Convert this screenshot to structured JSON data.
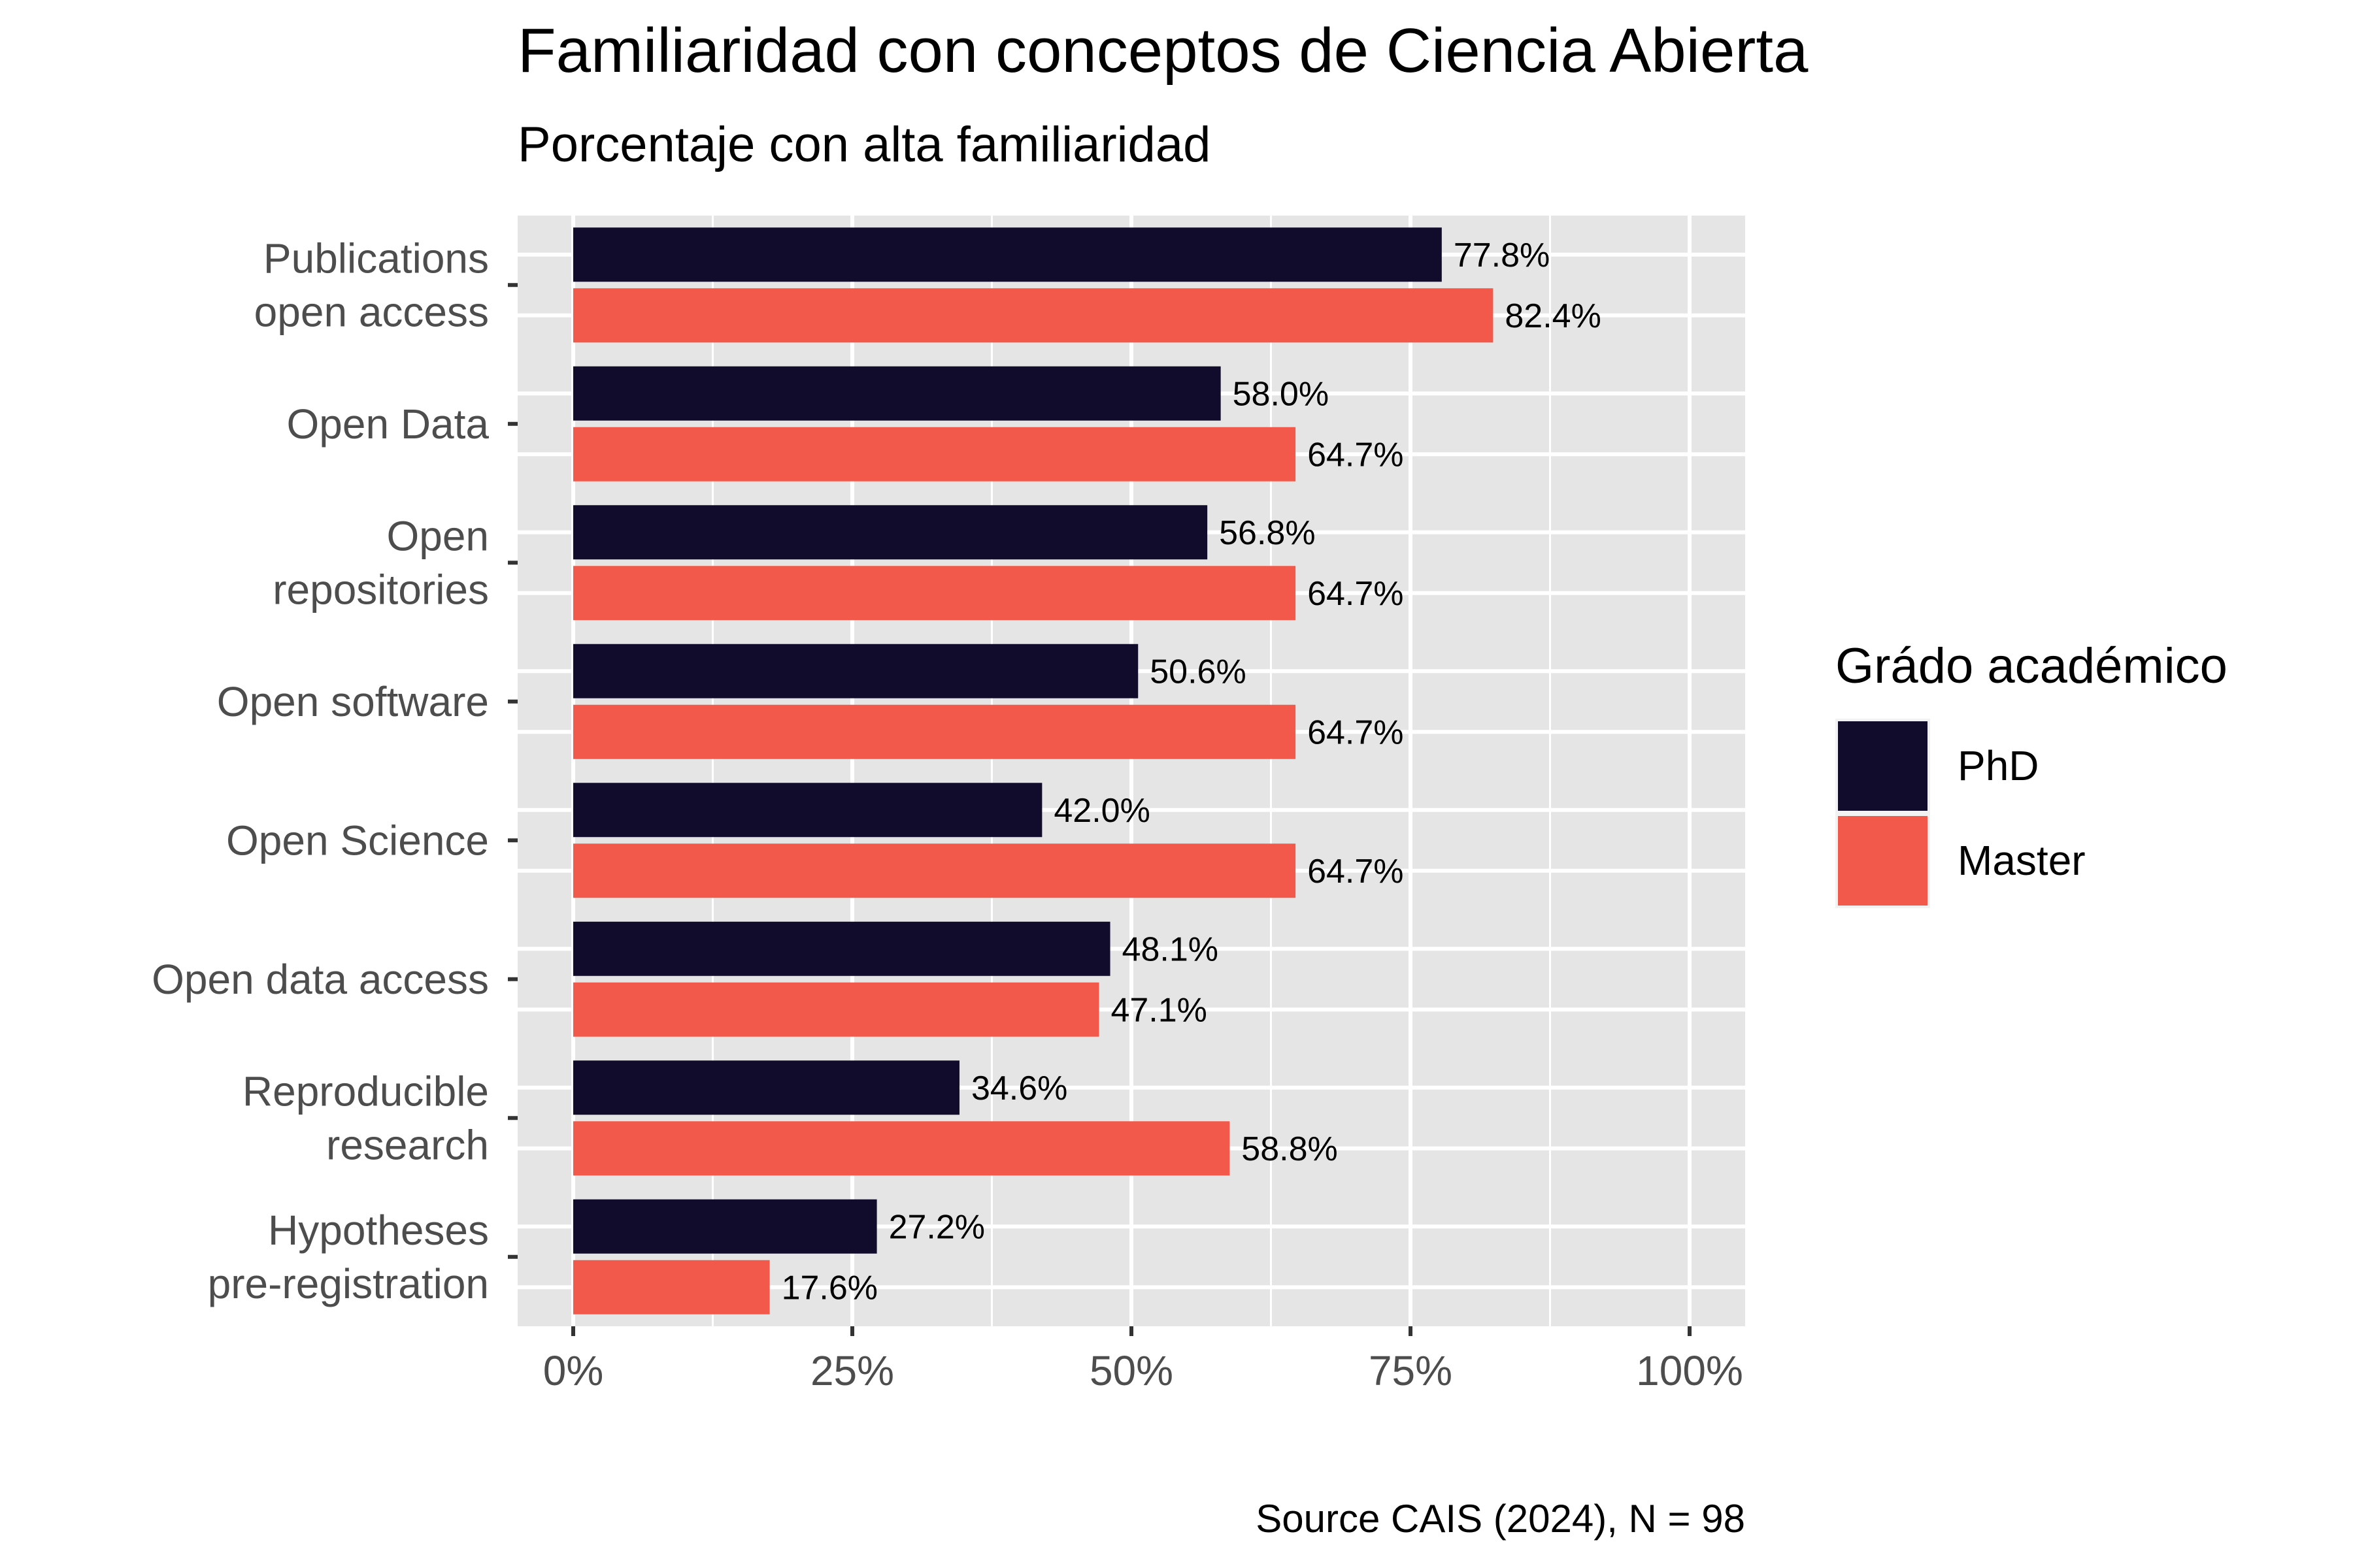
{
  "chart_data": {
    "type": "bar",
    "orientation": "horizontal",
    "title": "Familiaridad con conceptos de Ciencia Abierta",
    "subtitle": "Porcentaje con alta familiaridad",
    "caption": "Source CAIS (2024), N = 98",
    "categories": [
      [
        "Publications",
        "open access"
      ],
      [
        "Open Data"
      ],
      [
        "Open",
        "repositories"
      ],
      [
        "Open software"
      ],
      [
        "Open Science"
      ],
      [
        "Open data access"
      ],
      [
        "Reproducible",
        "research"
      ],
      [
        "Hypotheses",
        "pre-registration"
      ]
    ],
    "series": [
      {
        "name": "PhD",
        "color": "#120c2c",
        "values": [
          77.8,
          58.0,
          56.8,
          50.6,
          42.0,
          48.1,
          34.6,
          27.2
        ],
        "labels": [
          "77.8%",
          "58.0%",
          "56.8%",
          "50.6%",
          "42.0%",
          "48.1%",
          "34.6%",
          "27.2%"
        ]
      },
      {
        "name": "Master",
        "color": "#f2594b",
        "values": [
          82.4,
          64.7,
          64.7,
          64.7,
          64.7,
          47.1,
          58.8,
          17.6
        ],
        "labels": [
          "82.4%",
          "64.7%",
          "64.7%",
          "64.7%",
          "64.7%",
          "47.1%",
          "58.8%",
          "17.6%"
        ]
      }
    ],
    "xlim": [
      0,
      100
    ],
    "xticks": [
      0,
      25,
      50,
      75,
      100
    ],
    "xtick_labels": [
      "0%",
      "25%",
      "50%",
      "75%",
      "100%"
    ],
    "legend": {
      "title": "Grádo académico",
      "position": "right"
    },
    "grid": true,
    "panel_background": "#e5e5e5"
  }
}
